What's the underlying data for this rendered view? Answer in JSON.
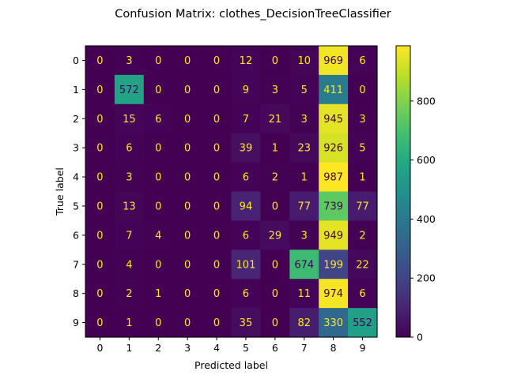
{
  "chart_data": {
    "type": "heatmap",
    "title": "Confusion Matrix: clothes_DecisionTreeClassifier",
    "xlabel": "Predicted label",
    "ylabel": "True label",
    "row_labels": [
      "0",
      "1",
      "2",
      "3",
      "4",
      "5",
      "6",
      "7",
      "8",
      "9"
    ],
    "col_labels": [
      "0",
      "1",
      "2",
      "3",
      "4",
      "5",
      "6",
      "7",
      "8",
      "9"
    ],
    "values": [
      [
        0,
        3,
        0,
        0,
        0,
        12,
        0,
        10,
        969,
        6
      ],
      [
        0,
        572,
        0,
        0,
        0,
        9,
        3,
        5,
        411,
        0
      ],
      [
        0,
        15,
        6,
        0,
        0,
        7,
        21,
        3,
        945,
        3
      ],
      [
        0,
        6,
        0,
        0,
        0,
        39,
        1,
        23,
        926,
        5
      ],
      [
        0,
        3,
        0,
        0,
        0,
        6,
        2,
        1,
        987,
        1
      ],
      [
        0,
        13,
        0,
        0,
        0,
        94,
        0,
        77,
        739,
        77
      ],
      [
        0,
        7,
        4,
        0,
        0,
        6,
        29,
        3,
        949,
        2
      ],
      [
        0,
        4,
        0,
        0,
        0,
        101,
        0,
        674,
        199,
        22
      ],
      [
        0,
        2,
        1,
        0,
        0,
        6,
        0,
        11,
        974,
        6
      ],
      [
        0,
        1,
        0,
        0,
        0,
        35,
        0,
        82,
        330,
        552
      ]
    ],
    "colormap": "viridis",
    "color_range": [
      0,
      987
    ],
    "colorbar_ticks": [
      0,
      200,
      400,
      600,
      800
    ],
    "text_color_light": "#fde725",
    "text_color_dark": "#440154",
    "grid": false
  }
}
